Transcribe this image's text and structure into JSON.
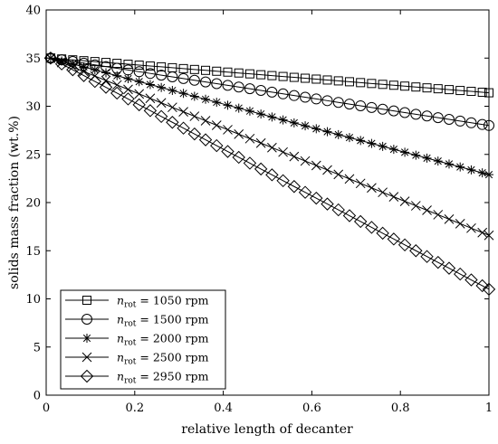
{
  "chart_data": {
    "type": "line",
    "title": "",
    "xlabel": "relative length of decanter",
    "ylabel": "solids mass fraction (wt.%)",
    "xlim": [
      0,
      1
    ],
    "ylim": [
      0,
      40
    ],
    "x_ticks": [
      "0",
      "0.2",
      "0.4",
      "0.6",
      "0.8",
      "1"
    ],
    "y_ticks": [
      "0",
      "5",
      "10",
      "15",
      "20",
      "25",
      "30",
      "35",
      "40"
    ],
    "grid": false,
    "legend_position": "bottom-left",
    "x": [
      0.01,
      0.035,
      0.06,
      0.085,
      0.11,
      0.135,
      0.16,
      0.185,
      0.21,
      0.235,
      0.26,
      0.285,
      0.31,
      0.335,
      0.36,
      0.385,
      0.41,
      0.435,
      0.46,
      0.485,
      0.51,
      0.535,
      0.56,
      0.585,
      0.61,
      0.635,
      0.66,
      0.685,
      0.71,
      0.735,
      0.76,
      0.785,
      0.81,
      0.835,
      0.86,
      0.885,
      0.91,
      0.935,
      0.96,
      0.985,
      1.0
    ],
    "series": [
      {
        "name": "= 1050 rpm",
        "marker": "square",
        "start": 35.0,
        "end": 31.4
      },
      {
        "name": "= 1500 rpm",
        "marker": "circle",
        "start": 35.0,
        "end": 28.0
      },
      {
        "name": "= 2000 rpm",
        "marker": "asterisk",
        "start": 35.0,
        "end": 22.9
      },
      {
        "name": "= 2500 rpm",
        "marker": "cross",
        "start": 35.0,
        "end": 16.6
      },
      {
        "name": "= 2950 rpm",
        "marker": "diamond",
        "start": 35.0,
        "end": 11.0
      }
    ],
    "legend_symbol": {
      "main": "n",
      "sub": "rot"
    }
  }
}
